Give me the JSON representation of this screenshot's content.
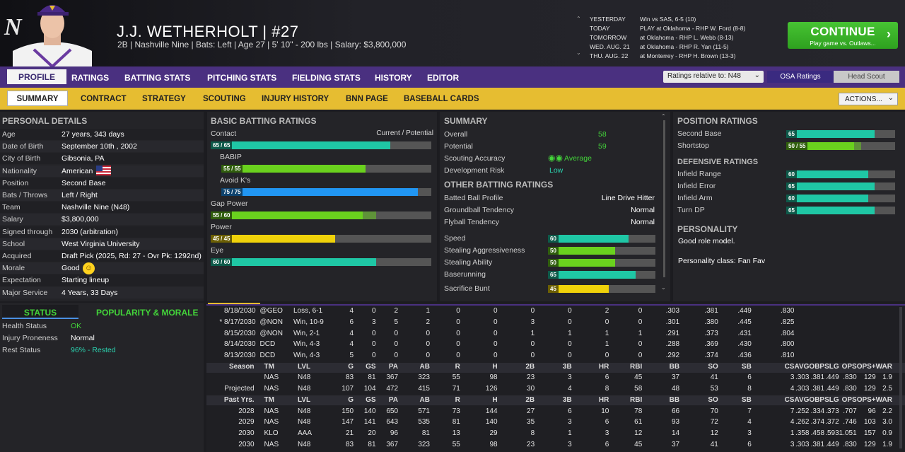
{
  "header": {
    "logo": "N",
    "player_name": "J.J. WETHERHOLT  |  #27",
    "player_info": "2B | Nashville Nine  |  Bats: Left  |  Age 27  |  5' 10\" - 200 lbs  |  Salary: $3,800,000"
  },
  "schedule": [
    {
      "day": "YESTERDAY",
      "info": "Win vs SAS, 6-5 (10)"
    },
    {
      "day": "TODAY",
      "info": "PLAY at Oklahoma - RHP W. Ford (8-8)"
    },
    {
      "day": "TOMORROW",
      "info": "at Oklahoma - RHP L. Webb (8-13)"
    },
    {
      "day": "WED. AUG. 21",
      "info": "at Oklahoma - RHP R. Yan (11-5)"
    },
    {
      "day": "THU. AUG. 22",
      "info": "at Monterrey - RHP H. Brown (13-3)"
    }
  ],
  "continue_button": {
    "label": "CONTINUE",
    "sub": "Play game vs. Outlaws..."
  },
  "nav_tabs": [
    "PROFILE",
    "RATINGS",
    "BATTING STATS",
    "PITCHING STATS",
    "FIELDING STATS",
    "HISTORY",
    "EDITOR"
  ],
  "ratings_relative": "Ratings relative to: N48",
  "osa_ratings": "OSA Ratings",
  "head_scout": "Head Scout",
  "sub_tabs": [
    "SUMMARY",
    "CONTRACT",
    "STRATEGY",
    "SCOUTING",
    "INJURY HISTORY",
    "BNN PAGE",
    "BASEBALL CARDS"
  ],
  "actions_label": "ACTIONS...",
  "personal": {
    "title": "PERSONAL DETAILS",
    "rows": [
      [
        "Age",
        "27 years, 343 days"
      ],
      [
        "Date of Birth",
        "September 10th , 2002"
      ],
      [
        "City of Birth",
        "Gibsonia, PA"
      ],
      [
        "Nationality",
        "American"
      ],
      [
        "Position",
        "Second Base"
      ],
      [
        "Bats / Throws",
        "Left / Right"
      ],
      [
        "Team",
        "Nashville Nine (N48)"
      ],
      [
        "Salary",
        "$3,800,000"
      ],
      [
        "Signed through",
        "2030 (arbitration)"
      ],
      [
        "School",
        "West Virginia University"
      ],
      [
        "Acquired",
        "Draft Pick (2025, Rd: 27 - Ovr Pk: 1292nd)"
      ],
      [
        "Morale",
        "Good"
      ],
      [
        "Expectation",
        "Starting lineup"
      ],
      [
        "Major Service",
        "4 Years, 33 Days"
      ]
    ]
  },
  "status": {
    "tab_status": "STATUS",
    "tab_popularity": "POPULARITY & MORALE",
    "rows": [
      [
        "Health Status",
        "OK"
      ],
      [
        "Injury Proneness",
        "Normal"
      ],
      [
        "Rest Status",
        "96% - Rested"
      ]
    ]
  },
  "batting": {
    "title": "BASIC BATTING RATINGS",
    "col_label": "Current / Potential",
    "ratings": [
      {
        "name": "Contact",
        "text": "65 / 65",
        "cur": 65,
        "pot": 65,
        "color": "#1fc7a5"
      },
      {
        "name": "BABIP",
        "text": "55 / 55",
        "cur": 55,
        "pot": 55,
        "color": "#6ad11e"
      },
      {
        "name": "Avoid K's",
        "text": "75 / 75",
        "cur": 75,
        "pot": 75,
        "color": "#2196f3"
      },
      {
        "name": "Gap Power",
        "text": "55 / 60",
        "cur": 55,
        "pot": 60,
        "color": "#6ad11e"
      },
      {
        "name": "Power",
        "text": "45 / 45",
        "cur": 45,
        "pot": 45,
        "color": "#f0d20a"
      },
      {
        "name": "Eye",
        "text": "60 / 60",
        "cur": 60,
        "pot": 60,
        "color": "#1fc7a5"
      }
    ]
  },
  "summary": {
    "title": "SUMMARY",
    "overall_label": "Overall",
    "overall": "58",
    "potential_label": "Potential",
    "potential": "59",
    "scouting_label": "Scouting Accuracy",
    "scouting": "Average",
    "devrisk_label": "Development Risk",
    "devrisk": "Low",
    "other_title": "OTHER BATTING RATINGS",
    "other": [
      [
        "Batted Ball Profile",
        "Line Drive Hitter"
      ],
      [
        "Groundball Tendency",
        "Normal"
      ],
      [
        "Flyball Tendency",
        "Normal"
      ]
    ],
    "running": [
      {
        "name": "Speed",
        "value": 60,
        "color": "#1fc7a5"
      },
      {
        "name": "Stealing Aggressiveness",
        "value": 50,
        "color": "#6ad11e"
      },
      {
        "name": "Stealing Ability",
        "value": 50,
        "color": "#6ad11e"
      },
      {
        "name": "Baserunning",
        "value": 65,
        "color": "#1fc7a5"
      },
      {
        "name": "Sacrifice Bunt",
        "value": 45,
        "color": "#f0d20a"
      }
    ]
  },
  "position": {
    "title": "POSITION RATINGS",
    "ratings": [
      {
        "name": "Second Base",
        "text": "65",
        "cur": 65,
        "pot": 65,
        "color": "#1fc7a5"
      },
      {
        "name": "Shortstop",
        "text": "50 / 55",
        "cur": 50,
        "pot": 55,
        "color": "#6ad11e"
      }
    ],
    "def_title": "DEFENSIVE RATINGS",
    "defensive": [
      {
        "name": "Infield Range",
        "value": 60,
        "color": "#1fc7a5"
      },
      {
        "name": "Infield Error",
        "value": 65,
        "color": "#1fc7a5"
      },
      {
        "name": "Infield Arm",
        "value": 60,
        "color": "#1fc7a5"
      },
      {
        "name": "Turn DP",
        "value": 65,
        "color": "#1fc7a5"
      }
    ],
    "personality_title": "PERSONALITY",
    "personality": "Good role model.",
    "personality_class": "Personality class: Fan Fav"
  },
  "game_log": [
    [
      "8/18/2030",
      "@GEO",
      "Loss, 6-1",
      "4",
      "0",
      "2",
      "1",
      "0",
      "0",
      "0",
      "0",
      "2",
      "0",
      ".303",
      ".381",
      ".449",
      ".830"
    ],
    [
      "* 8/17/2030",
      "@NON",
      "Win, 10-9",
      "6",
      "3",
      "5",
      "2",
      "0",
      "0",
      "3",
      "0",
      "0",
      "0",
      ".301",
      ".380",
      ".445",
      ".825"
    ],
    [
      "8/15/2030",
      "@NON",
      "Win, 2-1",
      "4",
      "0",
      "0",
      "0",
      "0",
      "0",
      "1",
      "1",
      "1",
      "1",
      ".291",
      ".373",
      ".431",
      ".804"
    ],
    [
      "8/14/2030",
      "DCD",
      "Win, 4-3",
      "4",
      "0",
      "0",
      "0",
      "0",
      "0",
      "0",
      "0",
      "1",
      "0",
      ".288",
      ".369",
      ".430",
      ".800"
    ],
    [
      "8/13/2030",
      "DCD",
      "Win, 4-3",
      "5",
      "0",
      "0",
      "0",
      "0",
      "0",
      "0",
      "0",
      "0",
      "0",
      ".292",
      ".374",
      ".436",
      ".810"
    ]
  ],
  "stat_headers": [
    "TM",
    "LVL",
    "G",
    "GS",
    "PA",
    "AB",
    "R",
    "H",
    "2B",
    "3B",
    "HR",
    "RBI",
    "BB",
    "SO",
    "SB",
    "CS",
    "AVG",
    "OBP",
    "SLG",
    "OPS",
    "OPS+",
    "WAR"
  ],
  "season_label": "Season",
  "past_label": "Past Yrs.",
  "season_rows": [
    [
      "",
      "NAS",
      "N48",
      "83",
      "81",
      "367",
      "323",
      "55",
      "98",
      "23",
      "3",
      "6",
      "45",
      "37",
      "41",
      "6",
      "3",
      ".303",
      ".381",
      ".449",
      ".830",
      "129",
      "1.9"
    ],
    [
      "Projected",
      "NAS",
      "N48",
      "107",
      "104",
      "472",
      "415",
      "71",
      "126",
      "30",
      "4",
      "8",
      "58",
      "48",
      "53",
      "8",
      "4",
      ".303",
      ".381",
      ".449",
      ".830",
      "129",
      "2.5"
    ]
  ],
  "past_rows": [
    [
      "2028",
      "NAS",
      "N48",
      "150",
      "140",
      "650",
      "571",
      "73",
      "144",
      "27",
      "6",
      "10",
      "78",
      "66",
      "70",
      "7",
      "7",
      ".252",
      ".334",
      ".373",
      ".707",
      "96",
      "2.2"
    ],
    [
      "2029",
      "NAS",
      "N48",
      "147",
      "141",
      "643",
      "535",
      "81",
      "140",
      "35",
      "3",
      "6",
      "61",
      "93",
      "72",
      "4",
      "4",
      ".262",
      ".374",
      ".372",
      ".746",
      "103",
      "3.0"
    ],
    [
      "2030",
      "KLO",
      "AAA",
      "21",
      "20",
      "96",
      "81",
      "13",
      "29",
      "8",
      "1",
      "3",
      "12",
      "14",
      "12",
      "3",
      "1",
      ".358",
      ".458",
      ".593",
      "1.051",
      "157",
      "0.9"
    ],
    [
      "2030",
      "NAS",
      "N48",
      "83",
      "81",
      "367",
      "323",
      "55",
      "98",
      "23",
      "3",
      "6",
      "45",
      "37",
      "41",
      "6",
      "3",
      ".303",
      ".381",
      ".449",
      ".830",
      "129",
      "1.9"
    ]
  ]
}
